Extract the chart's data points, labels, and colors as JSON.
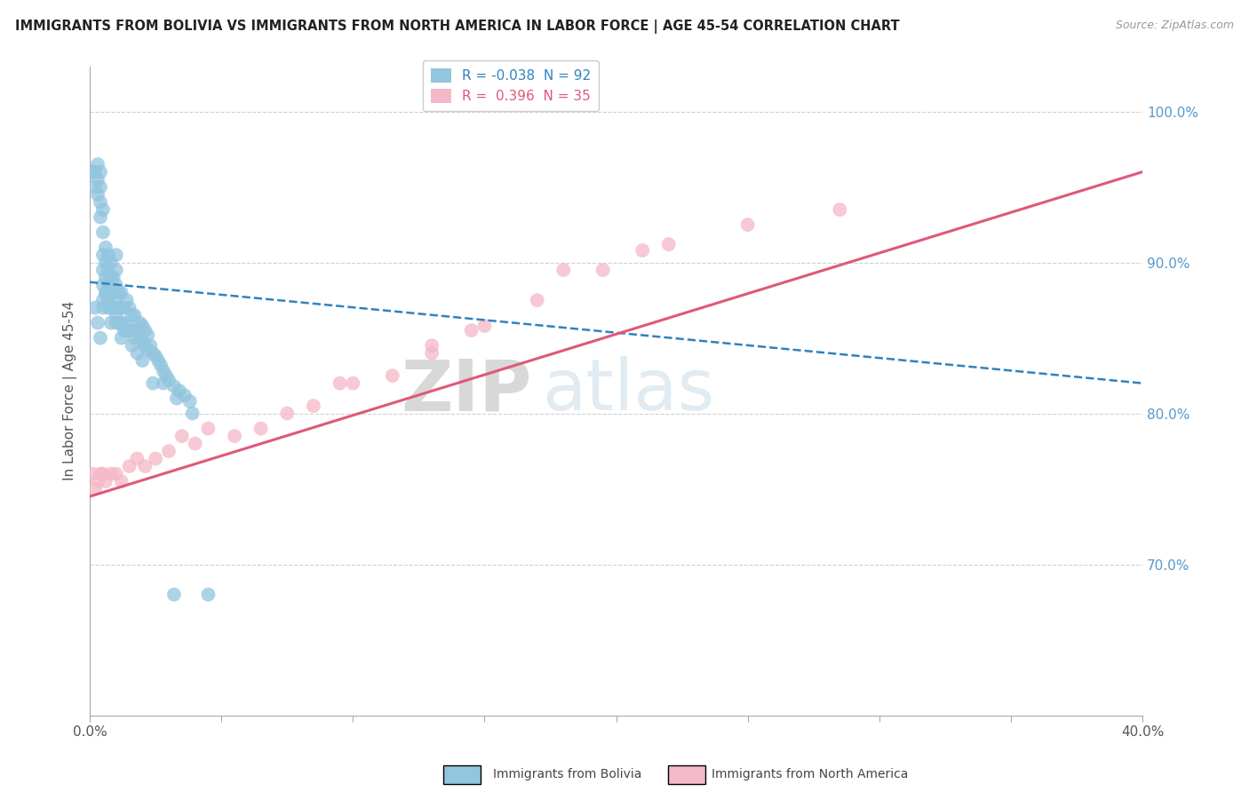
{
  "title": "IMMIGRANTS FROM BOLIVIA VS IMMIGRANTS FROM NORTH AMERICA IN LABOR FORCE | AGE 45-54 CORRELATION CHART",
  "source": "Source: ZipAtlas.com",
  "xlabel_bolivia": "Immigrants from Bolivia",
  "xlabel_north_america": "Immigrants from North America",
  "ylabel": "In Labor Force | Age 45-54",
  "xlim": [
    0.0,
    0.4
  ],
  "ylim": [
    0.6,
    1.03
  ],
  "xticks": [
    0.0,
    0.05,
    0.1,
    0.15,
    0.2,
    0.25,
    0.3,
    0.35,
    0.4
  ],
  "xtick_labels": [
    "0.0%",
    "",
    "",
    "",
    "",
    "",
    "",
    "",
    "40.0%"
  ],
  "yticks_right": [
    0.7,
    0.8,
    0.9,
    1.0
  ],
  "ytick_labels_right": [
    "70.0%",
    "80.0%",
    "90.0%",
    "100.0%"
  ],
  "bolivia_color": "#92c5de",
  "north_america_color": "#f4b8c8",
  "bolivia_R": -0.038,
  "bolivia_N": 92,
  "north_america_R": 0.396,
  "north_america_N": 35,
  "bolivia_line_color": "#3182bd",
  "north_america_line_color": "#e05878",
  "grid_color": "#d0d0d0",
  "background_color": "#ffffff",
  "watermark_color": "#d8e8f0",
  "bolivia_x": [
    0.001,
    0.002,
    0.002,
    0.003,
    0.003,
    0.003,
    0.004,
    0.004,
    0.004,
    0.004,
    0.005,
    0.005,
    0.005,
    0.005,
    0.005,
    0.005,
    0.006,
    0.006,
    0.006,
    0.006,
    0.007,
    0.007,
    0.007,
    0.007,
    0.008,
    0.008,
    0.008,
    0.008,
    0.009,
    0.009,
    0.009,
    0.01,
    0.01,
    0.01,
    0.01,
    0.01,
    0.011,
    0.011,
    0.011,
    0.012,
    0.012,
    0.012,
    0.013,
    0.013,
    0.014,
    0.014,
    0.015,
    0.015,
    0.016,
    0.016,
    0.017,
    0.017,
    0.018,
    0.019,
    0.019,
    0.02,
    0.02,
    0.021,
    0.021,
    0.022,
    0.022,
    0.023,
    0.024,
    0.025,
    0.026,
    0.027,
    0.028,
    0.029,
    0.03,
    0.032,
    0.034,
    0.036,
    0.038,
    0.002,
    0.003,
    0.004,
    0.005,
    0.006,
    0.007,
    0.008,
    0.01,
    0.012,
    0.014,
    0.016,
    0.018,
    0.02,
    0.024,
    0.028,
    0.033,
    0.039,
    0.045,
    0.032
  ],
  "bolivia_y": [
    0.96,
    0.95,
    0.96,
    0.945,
    0.955,
    0.965,
    0.93,
    0.94,
    0.95,
    0.96,
    0.875,
    0.885,
    0.895,
    0.905,
    0.92,
    0.935,
    0.88,
    0.89,
    0.9,
    0.91,
    0.875,
    0.885,
    0.895,
    0.905,
    0.87,
    0.88,
    0.89,
    0.9,
    0.87,
    0.88,
    0.89,
    0.865,
    0.875,
    0.885,
    0.895,
    0.905,
    0.86,
    0.87,
    0.88,
    0.86,
    0.87,
    0.88,
    0.855,
    0.87,
    0.86,
    0.875,
    0.855,
    0.87,
    0.855,
    0.865,
    0.85,
    0.865,
    0.855,
    0.85,
    0.86,
    0.848,
    0.858,
    0.845,
    0.855,
    0.842,
    0.852,
    0.845,
    0.84,
    0.838,
    0.835,
    0.832,
    0.828,
    0.825,
    0.822,
    0.818,
    0.815,
    0.812,
    0.808,
    0.87,
    0.86,
    0.85,
    0.87,
    0.88,
    0.87,
    0.86,
    0.86,
    0.85,
    0.855,
    0.845,
    0.84,
    0.835,
    0.82,
    0.82,
    0.81,
    0.8,
    0.68,
    0.68
  ],
  "north_america_x": [
    0.001,
    0.002,
    0.003,
    0.004,
    0.005,
    0.006,
    0.008,
    0.01,
    0.012,
    0.015,
    0.018,
    0.021,
    0.025,
    0.03,
    0.035,
    0.04,
    0.045,
    0.055,
    0.065,
    0.075,
    0.085,
    0.1,
    0.115,
    0.13,
    0.15,
    0.17,
    0.195,
    0.22,
    0.25,
    0.285,
    0.18,
    0.21,
    0.145,
    0.095,
    0.13
  ],
  "north_america_y": [
    0.76,
    0.75,
    0.755,
    0.76,
    0.76,
    0.755,
    0.76,
    0.76,
    0.755,
    0.765,
    0.77,
    0.765,
    0.77,
    0.775,
    0.785,
    0.78,
    0.79,
    0.785,
    0.79,
    0.8,
    0.805,
    0.82,
    0.825,
    0.84,
    0.858,
    0.875,
    0.895,
    0.912,
    0.925,
    0.935,
    0.895,
    0.908,
    0.855,
    0.82,
    0.845
  ],
  "bolivia_line_x": [
    0.0,
    0.4
  ],
  "bolivia_line_y": [
    0.887,
    0.82
  ],
  "north_america_line_x": [
    0.0,
    0.4
  ],
  "north_america_line_y": [
    0.745,
    0.96
  ]
}
